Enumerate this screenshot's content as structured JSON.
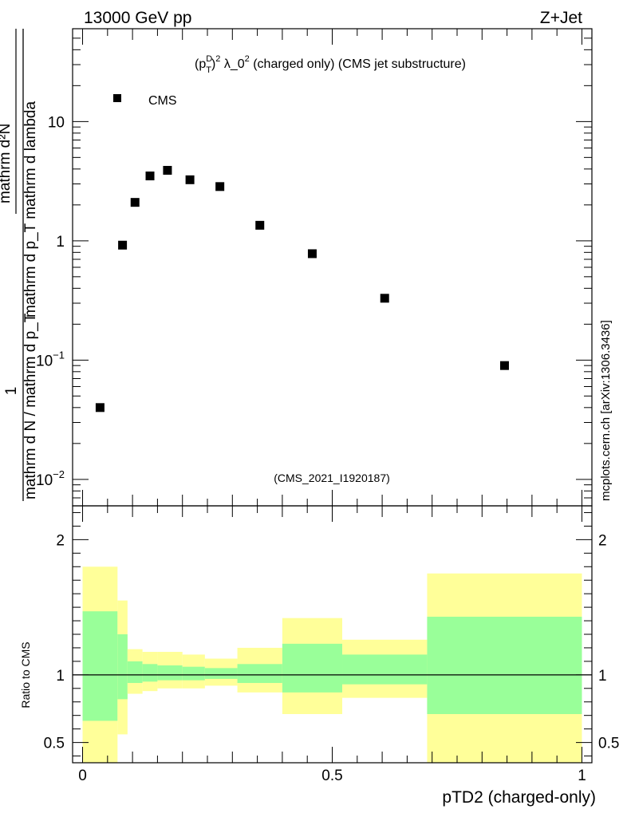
{
  "header": {
    "left_title": "13000 GeV pp",
    "right_title": "Z+Jet"
  },
  "watermark": {
    "side": "mcplots.cern.ch [arXiv:1306.3436]",
    "analysis": "(CMS_2021_I1920187)"
  },
  "colors": {
    "outer_band": "#ffff99",
    "inner_band": "#99ff99",
    "markers": "#000000",
    "watermark": "#999999"
  },
  "chart_data": [
    {
      "type": "scatter",
      "title": "(p_T^D)^2 λ_0^2 (charged only) (CMS jet substructure)",
      "title_parts": {
        "p": "(p",
        "sup_d": "D",
        "sub_t": "T",
        "close": ")",
        "sq1": "2",
        "lambda": " λ_0",
        "sq2": "2",
        "rest": " (charged only) (CMS jet substructure)"
      },
      "ylabel": "1 / mathrm d N / mathrm d p_T mathrm d^2 N / mathrm d p_T mathrm d lambda",
      "ylabel_parts": {
        "numerator": "1",
        "denominator": "mathrm d N / mathrm d p_T",
        "frac2_num": "mathrm d²N",
        "frac2_den": "mathrm d p_T mathrm d lambda"
      },
      "yscale": "log",
      "ylim": [
        0.006,
        60
      ],
      "xlim": [
        -0.02,
        1.02
      ],
      "yticks": [
        {
          "value": 0.01,
          "base": "10",
          "exp": "−2"
        },
        {
          "value": 0.1,
          "base": "10",
          "exp": "−1"
        },
        {
          "value": 1,
          "label": "1"
        },
        {
          "value": 10,
          "label": "10"
        }
      ],
      "legend": {
        "entries": [
          "CMS"
        ],
        "location": "top-left"
      },
      "series": [
        {
          "name": "CMS",
          "x": [
            0.035,
            0.08,
            0.105,
            0.135,
            0.17,
            0.215,
            0.275,
            0.355,
            0.46,
            0.605,
            0.845
          ],
          "values": [
            0.04,
            0.92,
            2.1,
            3.5,
            3.9,
            3.25,
            2.85,
            1.35,
            0.78,
            0.33,
            0.09
          ]
        }
      ]
    },
    {
      "type": "area",
      "ylabel": "Ratio to CMS",
      "xlabel": "pTD2 (charged-only)",
      "xlim": [
        -0.02,
        1.02
      ],
      "ylim": [
        0.35,
        2.25
      ],
      "yticks": [
        {
          "value": 0.5,
          "label": "0.5"
        },
        {
          "value": 1,
          "label": "1"
        },
        {
          "value": 2,
          "label": "2"
        }
      ],
      "xticks": [
        {
          "value": 0,
          "label": "0"
        },
        {
          "value": 0.5,
          "label": "0.5"
        },
        {
          "value": 1,
          "label": "1"
        }
      ],
      "reference_line": 1,
      "bins": [
        {
          "lo": 0.0,
          "hi": 0.07,
          "outer": [
            0.33,
            1.8
          ],
          "inner": [
            0.66,
            1.47
          ]
        },
        {
          "lo": 0.07,
          "hi": 0.09,
          "outer": [
            0.56,
            1.55
          ],
          "inner": [
            0.82,
            1.3
          ]
        },
        {
          "lo": 0.09,
          "hi": 0.12,
          "outer": [
            0.86,
            1.19
          ],
          "inner": [
            0.94,
            1.1
          ]
        },
        {
          "lo": 0.12,
          "hi": 0.15,
          "outer": [
            0.88,
            1.17
          ],
          "inner": [
            0.95,
            1.08
          ]
        },
        {
          "lo": 0.15,
          "hi": 0.2,
          "outer": [
            0.9,
            1.17
          ],
          "inner": [
            0.96,
            1.07
          ]
        },
        {
          "lo": 0.2,
          "hi": 0.245,
          "outer": [
            0.9,
            1.15
          ],
          "inner": [
            0.96,
            1.06
          ]
        },
        {
          "lo": 0.245,
          "hi": 0.31,
          "outer": [
            0.92,
            1.12
          ],
          "inner": [
            0.97,
            1.05
          ]
        },
        {
          "lo": 0.31,
          "hi": 0.4,
          "outer": [
            0.87,
            1.2
          ],
          "inner": [
            0.94,
            1.08
          ]
        },
        {
          "lo": 0.4,
          "hi": 0.52,
          "outer": [
            0.71,
            1.42
          ],
          "inner": [
            0.87,
            1.23
          ]
        },
        {
          "lo": 0.52,
          "hi": 0.69,
          "outer": [
            0.83,
            1.26
          ],
          "inner": [
            0.93,
            1.15
          ]
        },
        {
          "lo": 0.69,
          "hi": 1.0,
          "outer": [
            0.33,
            1.75
          ],
          "inner": [
            0.71,
            1.43
          ]
        }
      ]
    }
  ]
}
